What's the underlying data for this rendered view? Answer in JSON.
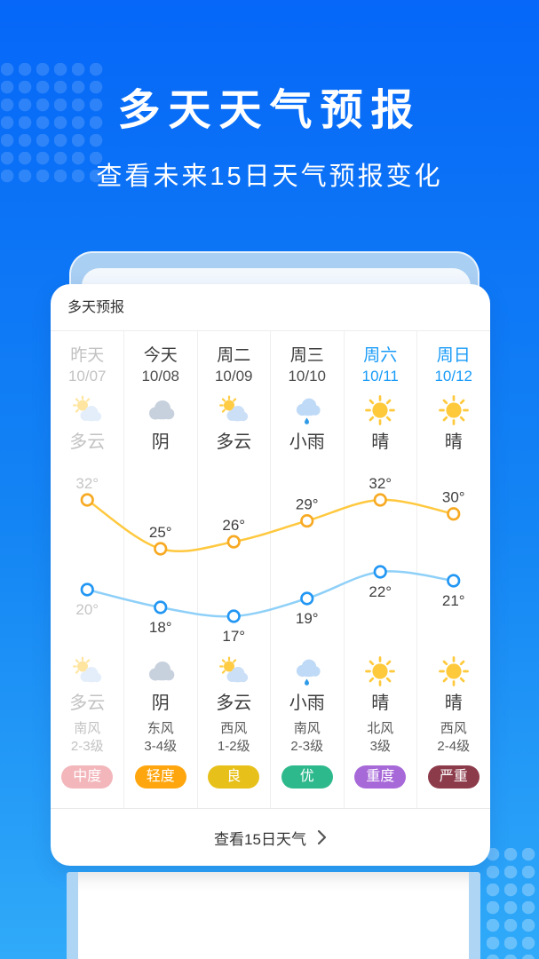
{
  "hero": {
    "title": "多天天气预报",
    "subtitle": "查看未来15日天气预报变化"
  },
  "card": {
    "header_title": "多天预报",
    "footer_label": "查看15日天气"
  },
  "columns": [
    {
      "day": "昨天",
      "date": "10/07",
      "muted": true,
      "highlight": false,
      "icon": "partly-cloudy",
      "cond": "多云",
      "wind": "南风",
      "wind_level": "2-3级",
      "aqi": {
        "label": "中度",
        "color": "#F2B6BB"
      }
    },
    {
      "day": "今天",
      "date": "10/08",
      "muted": false,
      "highlight": false,
      "icon": "overcast",
      "cond": "阴",
      "wind": "东风",
      "wind_level": "3-4级",
      "aqi": {
        "label": "轻度",
        "color": "#FFA60F"
      }
    },
    {
      "day": "周二",
      "date": "10/09",
      "muted": false,
      "highlight": false,
      "icon": "partly-cloudy",
      "cond": "多云",
      "wind": "西风",
      "wind_level": "1-2级",
      "aqi": {
        "label": "良",
        "color": "#E7C019"
      }
    },
    {
      "day": "周三",
      "date": "10/10",
      "muted": false,
      "highlight": false,
      "icon": "light-rain",
      "cond": "小雨",
      "wind": "南风",
      "wind_level": "2-3级",
      "aqi": {
        "label": "优",
        "color": "#2EB98C"
      }
    },
    {
      "day": "周六",
      "date": "10/11",
      "muted": false,
      "highlight": true,
      "icon": "sunny",
      "cond": "晴",
      "wind": "北风",
      "wind_level": "3级",
      "aqi": {
        "label": "重度",
        "color": "#A768D8"
      }
    },
    {
      "day": "周日",
      "date": "10/12",
      "muted": false,
      "highlight": true,
      "icon": "sunny",
      "cond": "晴",
      "wind": "西风",
      "wind_level": "2-4级",
      "aqi": {
        "label": "严重",
        "color": "#8C3B4B"
      }
    }
  ],
  "chart_data": {
    "type": "line",
    "categories": [
      "10/07",
      "10/08",
      "10/09",
      "10/10",
      "10/11",
      "10/12"
    ],
    "series": [
      {
        "name": "high",
        "values": [
          32,
          25,
          26,
          29,
          32,
          30
        ],
        "unit": "°",
        "line_color": "#FFC83E",
        "point_color": "#F7A922",
        "label_side": "above"
      },
      {
        "name": "low",
        "values": [
          20,
          18,
          17,
          19,
          22,
          21
        ],
        "unit": "°",
        "line_color": "#8FD0F8",
        "point_color": "#2196F3",
        "label_side": "below"
      }
    ],
    "label_color": "#3f3f3f",
    "muted_first_label_color": "#c5c5c5",
    "grid": false,
    "legend": "none"
  }
}
